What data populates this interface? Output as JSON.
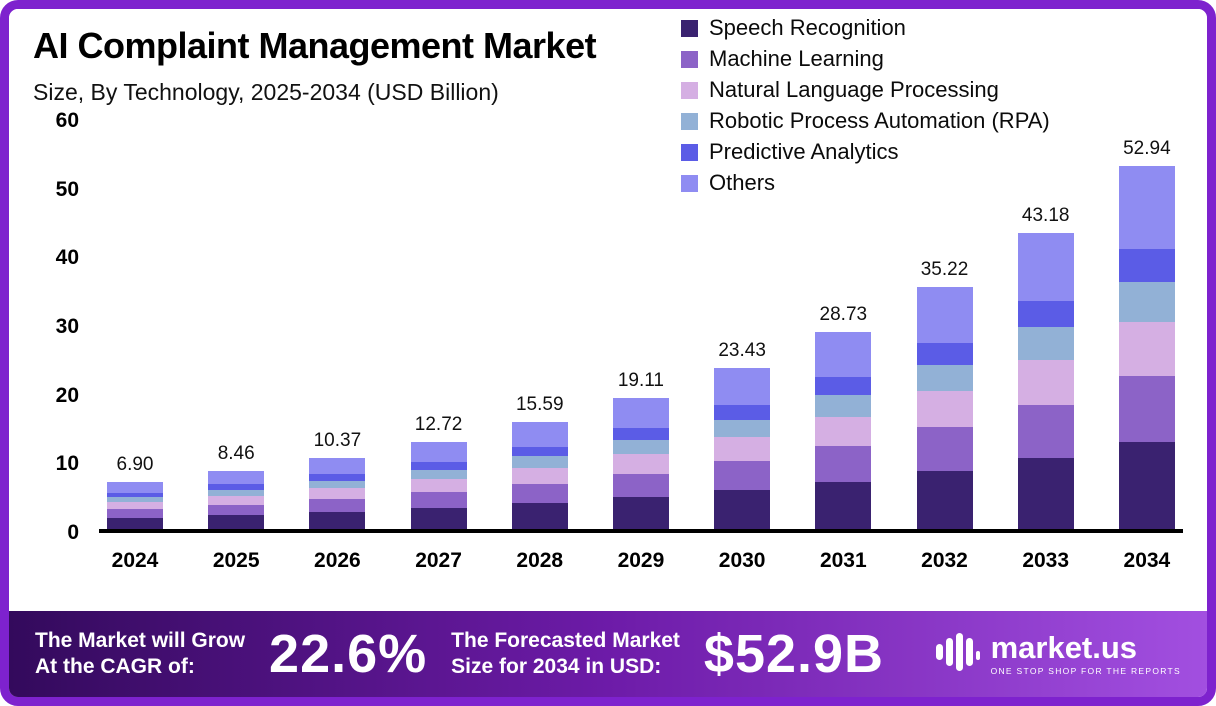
{
  "header": {
    "title": "AI Complaint Management Market",
    "subtitle": "Size, By Technology, 2025-2034 (USD Billion)"
  },
  "chart_data": {
    "type": "bar",
    "stacked": true,
    "title": "AI Complaint Management Market",
    "subtitle": "Size, By Technology, 2025-2034 (USD Billion)",
    "unit": "USD Billion",
    "grid": false,
    "legend_position": "top-right",
    "categories": [
      "2024",
      "2025",
      "2026",
      "2027",
      "2028",
      "2029",
      "2030",
      "2031",
      "2032",
      "2033",
      "2034"
    ],
    "totals": [
      6.9,
      8.46,
      10.37,
      12.72,
      15.59,
      19.11,
      23.43,
      28.73,
      35.22,
      43.18,
      52.94
    ],
    "total_labels": [
      "6.90",
      "8.46",
      "10.37",
      "12.72",
      "15.59",
      "19.11",
      "23.43",
      "28.73",
      "35.22",
      "43.18",
      "52.94"
    ],
    "ylim": [
      0,
      60
    ],
    "yticks": [
      0,
      10,
      20,
      30,
      40,
      50,
      60
    ],
    "series": [
      {
        "name": "Speech Recognition",
        "color": "#3a2270",
        "values": [
          1.66,
          2.03,
          2.49,
          3.05,
          3.74,
          4.59,
          5.62,
          6.9,
          8.45,
          10.36,
          12.71
        ]
      },
      {
        "name": "Machine Learning",
        "color": "#8c63c7",
        "values": [
          1.24,
          1.52,
          1.87,
          2.29,
          2.81,
          3.44,
          4.22,
          5.17,
          6.34,
          7.77,
          9.53
        ]
      },
      {
        "name": "Natural Language Processing",
        "color": "#d5afe3",
        "values": [
          1.04,
          1.27,
          1.56,
          1.91,
          2.34,
          2.87,
          3.51,
          4.31,
          5.28,
          6.48,
          7.94
        ]
      },
      {
        "name": "Robotic Process Automation (RPA)",
        "color": "#92b1d6",
        "values": [
          0.76,
          0.93,
          1.14,
          1.4,
          1.71,
          2.1,
          2.58,
          3.16,
          3.87,
          4.75,
          5.82
        ]
      },
      {
        "name": "Predictive Analytics",
        "color": "#5b5ce6",
        "values": [
          0.62,
          0.76,
          0.93,
          1.14,
          1.4,
          1.72,
          2.11,
          2.59,
          3.17,
          3.89,
          4.76
        ]
      },
      {
        "name": "Others",
        "color": "#8f8cf2",
        "values": [
          1.59,
          1.95,
          2.39,
          2.93,
          3.59,
          4.4,
          5.39,
          6.61,
          8.1,
          9.93,
          12.18
        ]
      }
    ]
  },
  "banner": {
    "cagr_label_line1": "The Market will Grow",
    "cagr_label_line2": "At the CAGR of:",
    "cagr_value": "22.6%",
    "forecast_label_line1": "The Forecasted Market",
    "forecast_label_line2": "Size for 2034 in USD:",
    "forecast_value": "$52.9B",
    "logo_text": "market.us",
    "logo_tagline": "ONE STOP SHOP FOR THE REPORTS"
  },
  "colors": {
    "frame_border": "#7e22ce",
    "banner_start": "#330a5c",
    "banner_mid": "#6d1ba8",
    "banner_end": "#a24fe0",
    "axis": "#000000"
  }
}
